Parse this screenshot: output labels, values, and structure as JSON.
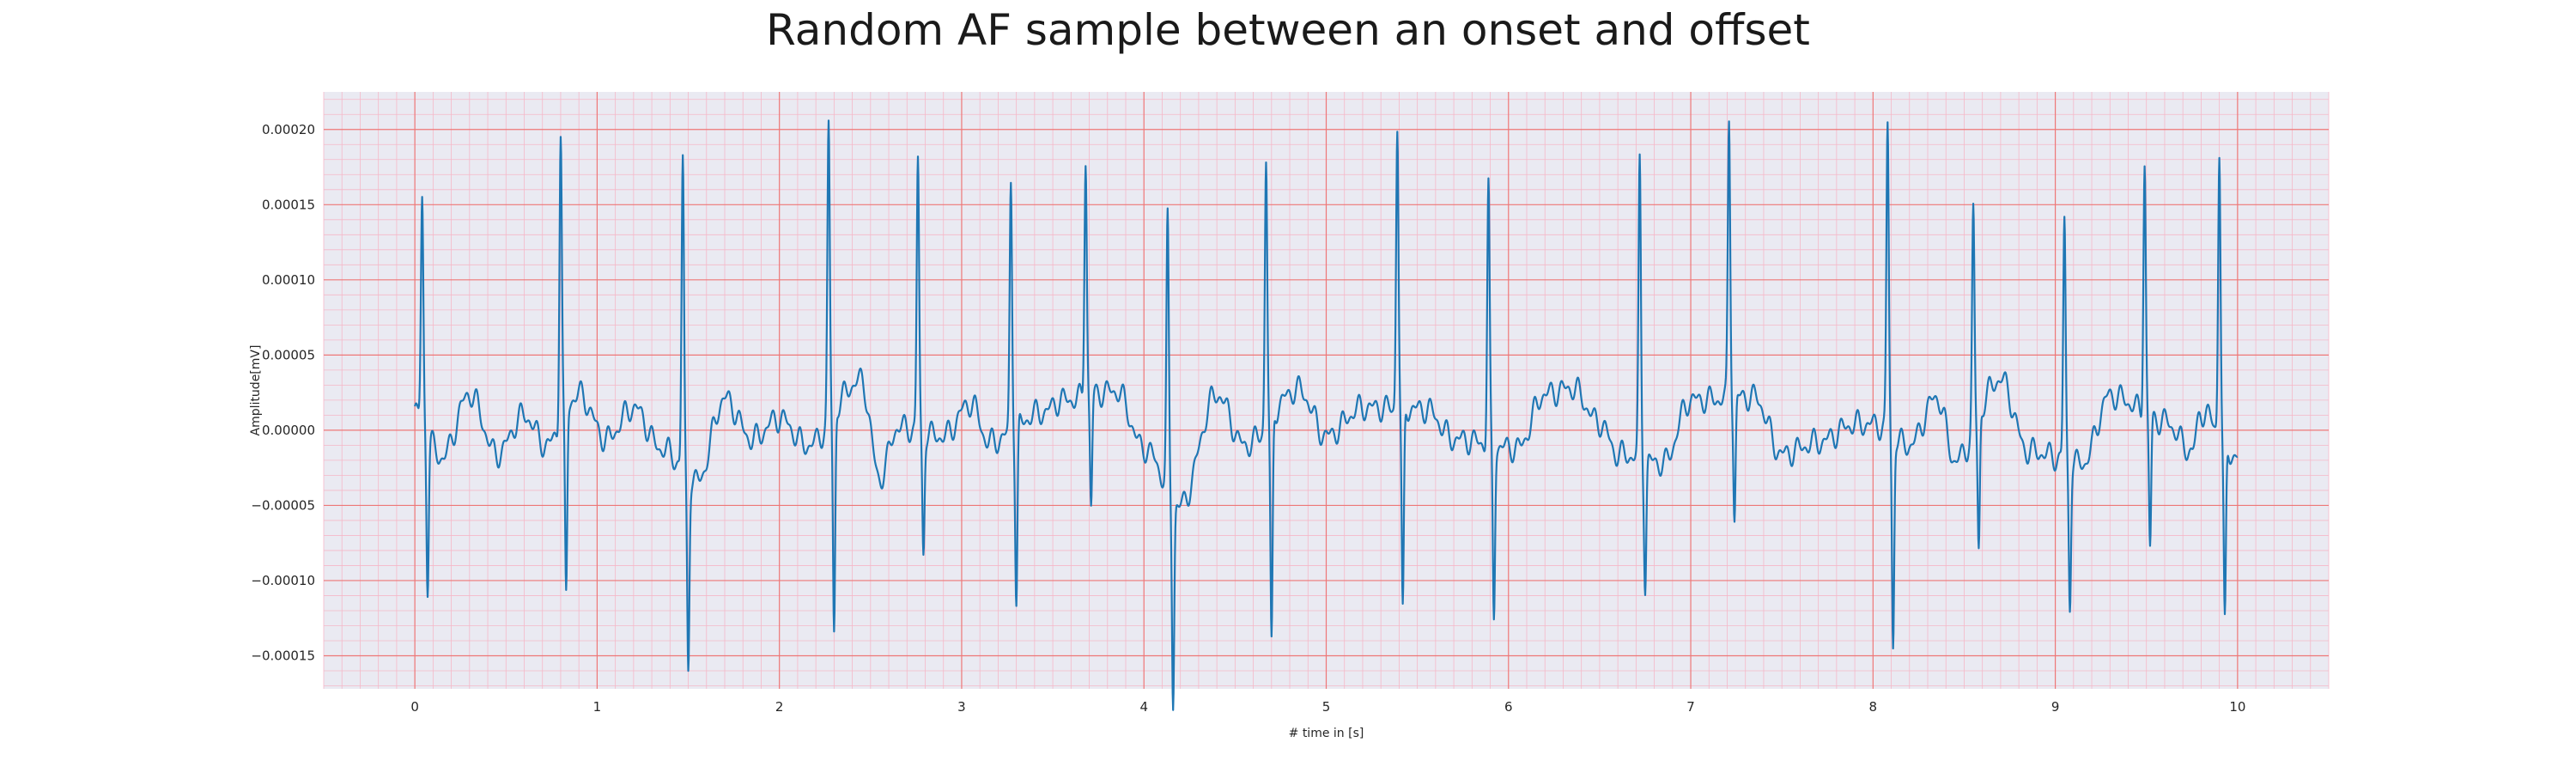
{
  "chart_data": {
    "type": "line",
    "title": "Random AF sample between an onset and offset",
    "xlabel": "# time in [s]",
    "ylabel": "Amplitude[mV]",
    "xlim": [
      -0.5,
      10.5
    ],
    "ylim": [
      -0.000172,
      0.000225
    ],
    "x_ticks": [
      0,
      1,
      2,
      3,
      4,
      5,
      6,
      7,
      8,
      9,
      10
    ],
    "x_tick_labels": [
      "0",
      "1",
      "2",
      "3",
      "4",
      "5",
      "6",
      "7",
      "8",
      "9",
      "10"
    ],
    "y_ticks": [
      0.0002,
      0.00015,
      0.0001,
      5e-05,
      0.0,
      -5e-05,
      -0.0001,
      -0.00015
    ],
    "y_tick_labels": [
      "0.00020",
      "0.00015",
      "0.00010",
      "0.00005",
      "0.00000",
      "−0.00005",
      "−0.00010",
      "−0.00015"
    ],
    "grid": {
      "major": true,
      "minor": true,
      "major_color": "#ee7777",
      "minor_color": "#f5b8c8",
      "background": "#eaeaf2"
    },
    "series": [
      {
        "color": "#1f77b4",
        "beats": [
          {
            "t": 0.04,
            "peak": 0.000147,
            "trough": -0.000102
          },
          {
            "t": 0.8,
            "peak": 0.000196,
            "trough": -0.000124
          },
          {
            "t": 1.47,
            "peak": 0.000207,
            "trough": -0.000126
          },
          {
            "t": 2.27,
            "peak": 0.000197,
            "trough": -0.000147
          },
          {
            "t": 2.76,
            "peak": 0.000181,
            "trough": -8e-05
          },
          {
            "t": 3.27,
            "peak": 0.000166,
            "trough": -0.000118
          },
          {
            "t": 3.68,
            "peak": 0.00016,
            "trough": -7.4e-05
          },
          {
            "t": 4.13,
            "peak": 0.000178,
            "trough": -0.000134
          },
          {
            "t": 4.67,
            "peak": 0.000178,
            "trough": -0.000154
          },
          {
            "t": 5.39,
            "peak": 0.000189,
            "trough": -0.000139
          },
          {
            "t": 5.89,
            "peak": 0.000173,
            "trough": -0.000113
          },
          {
            "t": 6.72,
            "peak": 0.000196,
            "trough": -8.3e-05
          },
          {
            "t": 7.21,
            "peak": 0.000185,
            "trough": -8.2e-05
          },
          {
            "t": 8.08,
            "peak": 0.000204,
            "trough": -0.00014
          },
          {
            "t": 8.55,
            "peak": 0.000147,
            "trough": -8.9e-05
          },
          {
            "t": 9.05,
            "peak": 0.00016,
            "trough": -9.4e-05
          },
          {
            "t": 9.49,
            "peak": 0.000168,
            "trough": -8.7e-05
          },
          {
            "t": 9.9,
            "peak": 0.00019,
            "trough": -0.000122
          }
        ],
        "baseline": [
          [
            0.0,
            1.2e-05
          ],
          [
            0.15,
            -1.8e-05
          ],
          [
            0.3,
            2.4e-05
          ],
          [
            0.45,
            -1.6e-05
          ],
          [
            0.6,
            1e-05
          ],
          [
            0.72,
            -1e-05
          ],
          [
            0.9,
            2.4e-05
          ],
          [
            1.05,
            -6e-06
          ],
          [
            1.2,
            1.5e-05
          ],
          [
            1.35,
            -1.2e-05
          ],
          [
            1.55,
            -3.4e-05
          ],
          [
            1.7,
            2.1e-05
          ],
          [
            1.85,
            -6e-06
          ],
          [
            2.0,
            8e-06
          ],
          [
            2.15,
            -1e-05
          ],
          [
            2.45,
            3.3e-05
          ],
          [
            2.55,
            -3.2e-05
          ],
          [
            2.65,
            2e-06
          ],
          [
            2.9,
            -4e-06
          ],
          [
            3.05,
            1.8e-05
          ],
          [
            3.15,
            -8e-06
          ],
          [
            3.45,
            1.2e-05
          ],
          [
            3.55,
            2e-05
          ],
          [
            3.85,
            2.6e-05
          ],
          [
            4.0,
            -1.2e-05
          ],
          [
            4.2,
            -5e-05
          ],
          [
            4.4,
            2.4e-05
          ],
          [
            4.55,
            -1e-05
          ],
          [
            4.85,
            2.7e-05
          ],
          [
            5.0,
            -4e-06
          ],
          [
            5.2,
            1.5e-05
          ],
          [
            5.55,
            1.4e-05
          ],
          [
            5.7,
            -6e-06
          ],
          [
            6.05,
            -1.2e-05
          ],
          [
            6.2,
            2.4e-05
          ],
          [
            6.35,
            2.8e-05
          ],
          [
            6.5,
            5e-06
          ],
          [
            6.6,
            -1.6e-05
          ],
          [
            6.85,
            -2.2e-05
          ],
          [
            7.0,
            2e-05
          ],
          [
            7.35,
            2.2e-05
          ],
          [
            7.5,
            -1.6e-05
          ],
          [
            7.7,
            -8e-06
          ],
          [
            7.9,
            4e-06
          ],
          [
            8.0,
            4e-06
          ],
          [
            8.2,
            -1e-05
          ],
          [
            8.35,
            2.2e-05
          ],
          [
            8.45,
            -2e-05
          ],
          [
            8.7,
            3.4e-05
          ],
          [
            8.85,
            -1.4e-05
          ],
          [
            9.15,
            -2.2e-05
          ],
          [
            9.3,
            2.3e-05
          ],
          [
            9.6,
            6e-06
          ],
          [
            9.75,
            -1.4e-05
          ],
          [
            9.8,
            1.2e-05
          ],
          [
            10.0,
            -1.8e-05
          ]
        ]
      }
    ]
  }
}
